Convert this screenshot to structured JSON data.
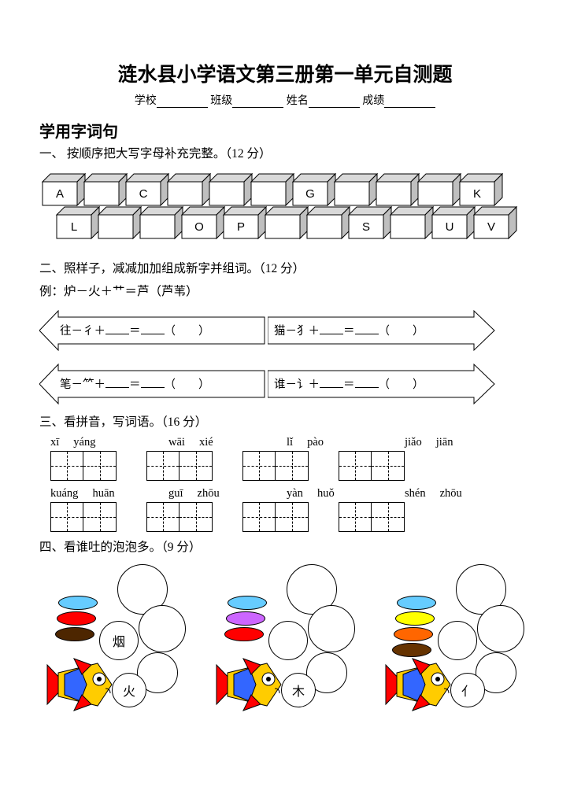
{
  "title": "涟水县小学语文第三册第一单元自测题",
  "info": {
    "school": "学校",
    "class": "班级",
    "name": "姓名",
    "score": "成绩"
  },
  "section_header": "学用字词句",
  "q1": {
    "label": "一、  按顺序把大写字母补充完整。（12 分）",
    "row1": [
      "A",
      "",
      "C",
      "",
      "",
      "",
      "G",
      "",
      "",
      "",
      "K"
    ],
    "row2": [
      "L",
      "",
      "",
      "O",
      "P",
      "",
      "",
      "S",
      "",
      "U",
      "V"
    ],
    "colors": {
      "face": "#ffffff",
      "top": "#d9d9d9",
      "side": "#bfbfbf",
      "edge": "#000000"
    }
  },
  "q2": {
    "label": "二、照样子，减减加加组成新字并组词。（12 分）",
    "example": "例：炉－火＋艹＝芦（芦苇）",
    "items": [
      "往－彳＋",
      "猫－犭＋",
      "笔－⺮＋",
      "谁－讠＋"
    ]
  },
  "q3": {
    "label": "三、看拼音，写词语。（16 分）",
    "row1": [
      [
        "xī",
        "yáng"
      ],
      [
        "wāi",
        "xié"
      ],
      [
        "lǐ",
        "pào"
      ],
      [
        "jiǎo",
        "jiān"
      ]
    ],
    "row2": [
      [
        "kuáng",
        "huān"
      ],
      [
        "guī",
        "zhōu"
      ],
      [
        "yàn",
        "huǒ"
      ],
      [
        "shén",
        "zhōu"
      ]
    ]
  },
  "q4": {
    "label": "四、看谁吐的泡泡多。（9 分）",
    "groups": [
      {
        "seed_top": "烟",
        "seed_bottom": "火",
        "ellipses": [
          "#66ccff",
          "#ff0000",
          "#4d2600"
        ]
      },
      {
        "seed_top": "",
        "seed_bottom": "木",
        "ellipses": [
          "#66ccff",
          "#cc66ff",
          "#ff0000"
        ]
      },
      {
        "seed_top": "",
        "seed_bottom": "亻",
        "ellipses": [
          "#66ccff",
          "#ffff00",
          "#ff6600",
          "#663300"
        ]
      }
    ],
    "fish_colors": {
      "body": "#ffcc00",
      "fin": "#ff0000",
      "stripe": "#3366ff",
      "eye": "#ffffff"
    }
  }
}
